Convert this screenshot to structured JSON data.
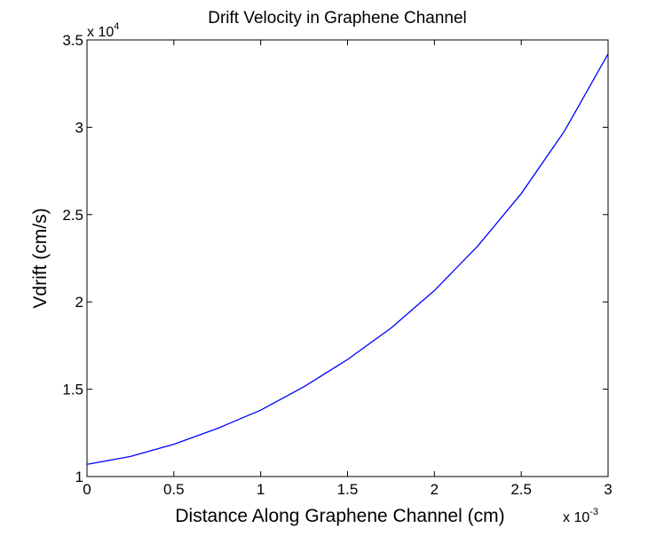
{
  "chart_data": {
    "type": "line",
    "title": "Drift Velocity in Graphene Channel",
    "xlabel": "Distance Along Graphene Channel (cm)",
    "ylabel": "Vdrift (cm/s)",
    "x_multiplier": {
      "base": "x 10",
      "exponent": "-3"
    },
    "y_multiplier": {
      "base": "x 10",
      "exponent": "4"
    },
    "xlim": [
      0,
      3
    ],
    "ylim": [
      1,
      3.5
    ],
    "x_tick_labels": [
      "0",
      "0.5",
      "1",
      "1.5",
      "2",
      "2.5",
      "3"
    ],
    "y_tick_labels": [
      "1",
      "1.5",
      "2",
      "2.5",
      "3",
      "3.5"
    ],
    "grid": false,
    "line_color": "#0000ff",
    "series": [
      {
        "x": [
          0,
          0.25,
          0.5,
          0.75,
          1.0,
          1.25,
          1.5,
          1.75,
          2.0,
          2.25,
          2.5,
          2.75,
          3.0
        ],
        "y": [
          1.07,
          1.115,
          1.185,
          1.275,
          1.38,
          1.515,
          1.67,
          1.85,
          2.065,
          2.32,
          2.62,
          2.98,
          3.42
        ]
      }
    ]
  }
}
